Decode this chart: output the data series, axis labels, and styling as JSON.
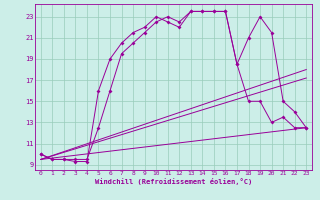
{
  "xlabel": "Windchill (Refroidissement éolien,°C)",
  "bg_color": "#cceee8",
  "line_color": "#990099",
  "grid_color": "#99ccbb",
  "x_ticks": [
    0,
    1,
    2,
    3,
    4,
    5,
    6,
    7,
    8,
    9,
    10,
    11,
    12,
    13,
    14,
    15,
    16,
    17,
    18,
    19,
    20,
    21,
    22,
    23
  ],
  "y_ticks": [
    9,
    11,
    13,
    15,
    17,
    19,
    21,
    23
  ],
  "xlim": [
    -0.5,
    23.5
  ],
  "ylim": [
    8.5,
    24.2
  ],
  "line1_x": [
    0,
    1,
    2,
    3,
    4,
    5,
    6,
    7,
    8,
    9,
    10,
    11,
    12,
    13,
    14,
    15,
    16,
    17,
    18,
    19,
    20,
    21,
    22,
    23
  ],
  "line1_y": [
    10.0,
    9.5,
    9.5,
    9.5,
    9.5,
    12.5,
    16.0,
    19.5,
    20.5,
    21.5,
    22.5,
    23.0,
    22.5,
    23.5,
    23.5,
    23.5,
    23.5,
    18.5,
    21.0,
    23.0,
    21.5,
    15.0,
    14.0,
    12.5
  ],
  "line2_x": [
    0,
    1,
    2,
    3,
    4,
    5,
    6,
    7,
    8,
    9,
    10,
    11,
    12,
    13,
    14,
    15,
    16,
    17,
    18,
    19,
    20,
    21,
    22,
    23
  ],
  "line2_y": [
    10.0,
    9.5,
    9.5,
    9.3,
    9.3,
    16.0,
    19.0,
    20.5,
    21.5,
    22.0,
    23.0,
    22.5,
    22.0,
    23.5,
    23.5,
    23.5,
    23.5,
    18.5,
    15.0,
    15.0,
    13.0,
    13.5,
    12.5,
    12.5
  ],
  "line3_x": [
    0,
    23
  ],
  "line3_y": [
    9.5,
    18.0
  ],
  "line4_x": [
    0,
    23
  ],
  "line4_y": [
    9.5,
    17.2
  ],
  "line5_x": [
    0,
    23
  ],
  "line5_y": [
    9.5,
    12.5
  ]
}
